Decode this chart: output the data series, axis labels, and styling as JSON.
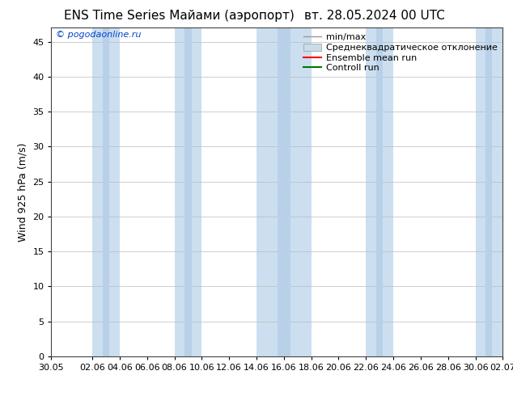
{
  "title": "ENS Time Series Майами (аэропорт)",
  "title_right": "вт. 28.05.2024 00 UTC",
  "ylabel": "Wind 925 hPa (m/s)",
  "watermark": "© pogodaonline.ru",
  "ylim": [
    0,
    47
  ],
  "yticks": [
    0,
    5,
    10,
    15,
    20,
    25,
    30,
    35,
    40,
    45
  ],
  "xtick_labels": [
    "30.05",
    "02.06",
    "04.06",
    "06.06",
    "08.06",
    "10.06",
    "12.06",
    "14.06",
    "16.06",
    "18.06",
    "20.06",
    "22.06",
    "24.06",
    "26.06",
    "28.06",
    "30.06",
    "02.07"
  ],
  "xtick_positions": [
    0,
    3,
    5,
    7,
    9,
    11,
    13,
    15,
    17,
    19,
    21,
    23,
    25,
    27,
    29,
    31,
    33
  ],
  "xlim": [
    0,
    33
  ],
  "band_color_light": "#ccdff0",
  "band_color_dark": "#b8d0e8",
  "background_color": "#ffffff",
  "legend_entries": [
    "min/max",
    "Среднеквадратическое отклонение",
    "Ensemble mean run",
    "Controll run"
  ],
  "legend_colors_line": [
    "#999999",
    "#aabbcc",
    "#ff0000",
    "#007700"
  ],
  "legend_patch_color": "#c8dcea",
  "title_fontsize": 11,
  "label_fontsize": 9,
  "tick_fontsize": 8,
  "legend_fontsize": 8,
  "watermark_color": "#0044cc",
  "bands": [
    [
      3,
      5
    ],
    [
      9,
      11
    ],
    [
      15,
      19
    ],
    [
      23,
      25
    ],
    [
      31,
      33
    ]
  ]
}
